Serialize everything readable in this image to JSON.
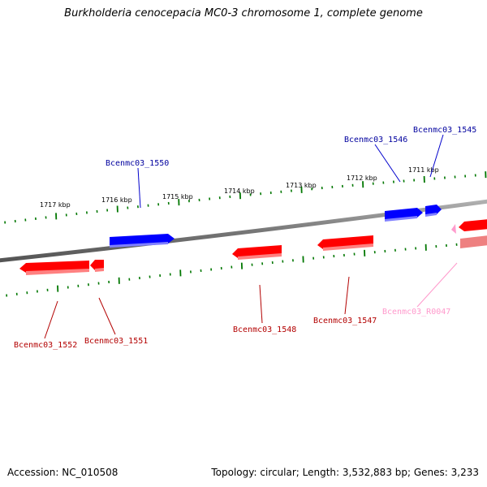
{
  "title": "Burkholderia cenocepacia MC0-3 chromosome 1, complete genome",
  "footer": {
    "accession": "Accession: NC_010508",
    "summary": "Topology: circular; Length: 3,532,883 bp; Genes: 3,233"
  },
  "colors": {
    "forward_strand": "#0000ff",
    "reverse_strand": "#ff0000",
    "rna": "#ff9ccd",
    "backbone": "#808080",
    "ticks": "#007700",
    "label_forward": "#00009e",
    "label_reverse": "#b30000",
    "label_rna": "#ff99cc"
  },
  "scale_labels": [
    "1717 kbp",
    "1716 kbp",
    "1715 kbp",
    "1714 kbp",
    "1713 kbp",
    "1712 kbp",
    "1711 kbp"
  ],
  "genes": [
    {
      "name": "Bcenmc03_1550",
      "strand": "forward"
    },
    {
      "name": "Bcenmc03_1546",
      "strand": "forward"
    },
    {
      "name": "Bcenmc03_1545",
      "strand": "forward"
    },
    {
      "name": "Bcenmc03_1552",
      "strand": "reverse"
    },
    {
      "name": "Bcenmc03_1551",
      "strand": "reverse"
    },
    {
      "name": "Bcenmc03_1548",
      "strand": "reverse"
    },
    {
      "name": "Bcenmc03_1547",
      "strand": "reverse"
    },
    {
      "name": "Bcenmc03_R0047",
      "strand": "rna"
    }
  ]
}
